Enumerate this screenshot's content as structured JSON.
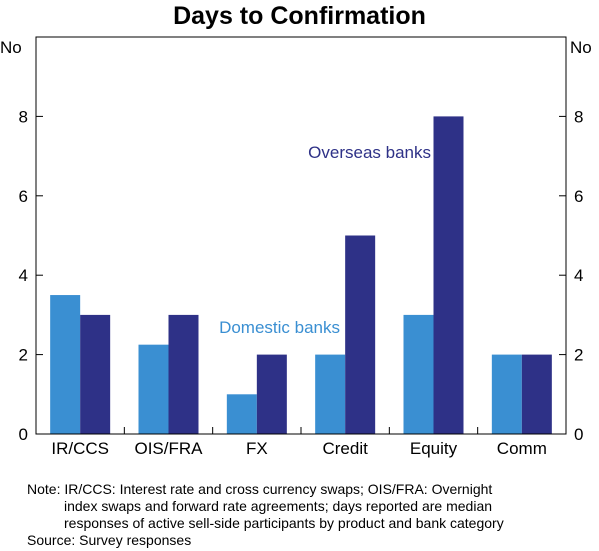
{
  "chart_data": {
    "type": "bar",
    "title": "Days to Confirmation",
    "ylabel_left": "No",
    "ylabel_right": "No",
    "ylim": [
      0,
      10
    ],
    "yticks": [
      0,
      2,
      4,
      6,
      8
    ],
    "grid": false,
    "categories": [
      "IR/CCS",
      "OIS/FRA",
      "FX",
      "Credit",
      "Equity",
      "Comm"
    ],
    "series": [
      {
        "name": "Domestic banks",
        "color": "#3a8fd2",
        "values": [
          3.5,
          2.25,
          1,
          2,
          3,
          2
        ]
      },
      {
        "name": "Overseas banks",
        "color": "#2e3187",
        "values": [
          3,
          3,
          2,
          5,
          8,
          2
        ]
      }
    ],
    "legend": "inline labels"
  },
  "notes": {
    "line1": "Note: IR/CCS: Interest rate and cross currency swaps; OIS/FRA: Overnight",
    "line2": "index swaps and forward rate agreements; days reported are median",
    "line3": "responses of active sell-side participants by product and bank category",
    "source": "Source: Survey responses"
  }
}
